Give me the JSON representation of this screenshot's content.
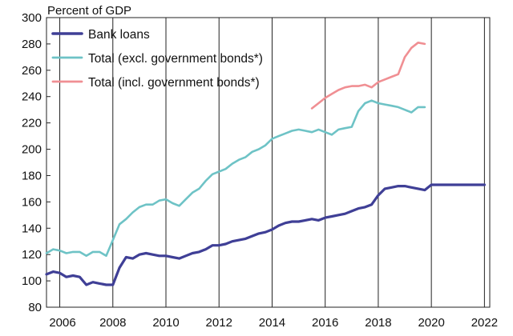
{
  "chart_data": {
    "type": "line",
    "title": "",
    "ylabel": "Percent of GDP",
    "xlabel": "",
    "xlim": [
      2005.5,
      2022.2
    ],
    "ylim": [
      80,
      300
    ],
    "y_ticks": [
      80,
      100,
      120,
      140,
      160,
      180,
      200,
      220,
      240,
      260,
      280,
      300
    ],
    "x_ticks": [
      2006,
      2008,
      2010,
      2012,
      2014,
      2016,
      2018,
      2020,
      2022
    ],
    "grid": {
      "vertical_lines_at_years": true,
      "horizontal": false
    },
    "legend_position": "top-left",
    "series": [
      {
        "name": "Bank loans",
        "color": "#3f3f96",
        "x": [
          2005.5,
          2005.75,
          2006.0,
          2006.25,
          2006.5,
          2006.75,
          2007.0,
          2007.25,
          2007.5,
          2007.75,
          2008.0,
          2008.25,
          2008.5,
          2008.75,
          2009.0,
          2009.25,
          2009.5,
          2009.75,
          2010.0,
          2010.25,
          2010.5,
          2010.75,
          2011.0,
          2011.25,
          2011.5,
          2011.75,
          2012.0,
          2012.25,
          2012.5,
          2012.75,
          2013.0,
          2013.25,
          2013.5,
          2013.75,
          2014.0,
          2014.25,
          2014.5,
          2014.75,
          2015.0,
          2015.25,
          2015.5,
          2015.75,
          2016.0,
          2016.25,
          2016.5,
          2016.75,
          2017.0,
          2017.25,
          2017.5,
          2017.75,
          2018.0,
          2018.25,
          2018.5,
          2018.75,
          2019.0,
          2019.25,
          2019.5,
          2019.75,
          2020.0,
          2020.25,
          2020.5,
          2020.75,
          2021.0,
          2021.25,
          2021.5,
          2021.75,
          2022.0
        ],
        "values": [
          105,
          107,
          106,
          103,
          104,
          103,
          97,
          99,
          98,
          97,
          97,
          110,
          118,
          117,
          120,
          121,
          120,
          119,
          119,
          118,
          117,
          119,
          121,
          122,
          124,
          127,
          127,
          128,
          130,
          131,
          132,
          134,
          136,
          137,
          139,
          142,
          144,
          145,
          145,
          146,
          147,
          146,
          148,
          149,
          150,
          151,
          153,
          155,
          156,
          158,
          165,
          170,
          171,
          172,
          172,
          171,
          170,
          169,
          173,
          173,
          173,
          173,
          173,
          173,
          173,
          173,
          173
        ]
      },
      {
        "name": "Total (excl. government bonds*)",
        "color": "#6ec3c6",
        "x": [
          2005.5,
          2005.75,
          2006.0,
          2006.25,
          2006.5,
          2006.75,
          2007.0,
          2007.25,
          2007.5,
          2007.75,
          2008.0,
          2008.25,
          2008.5,
          2008.75,
          2009.0,
          2009.25,
          2009.5,
          2009.75,
          2010.0,
          2010.25,
          2010.5,
          2010.75,
          2011.0,
          2011.25,
          2011.5,
          2011.75,
          2012.0,
          2012.25,
          2012.5,
          2012.75,
          2013.0,
          2013.25,
          2013.5,
          2013.75,
          2014.0,
          2014.25,
          2014.5,
          2014.75,
          2015.0,
          2015.25,
          2015.5,
          2015.75,
          2016.0,
          2016.25,
          2016.5,
          2016.75,
          2017.0,
          2017.25,
          2017.5,
          2017.75,
          2018.0,
          2018.25,
          2018.5,
          2018.75,
          2019.0,
          2019.25,
          2019.5,
          2019.75
        ],
        "values": [
          121,
          124,
          123,
          121,
          122,
          122,
          119,
          122,
          122,
          119,
          131,
          143,
          147,
          152,
          156,
          158,
          158,
          161,
          162,
          159,
          157,
          162,
          167,
          170,
          176,
          181,
          183,
          185,
          189,
          192,
          194,
          198,
          200,
          203,
          208,
          210,
          212,
          214,
          215,
          214,
          213,
          215,
          213,
          211,
          215,
          216,
          217,
          229,
          235,
          237,
          235,
          234,
          233,
          232,
          230,
          228,
          232,
          232
        ]
      },
      {
        "name": "Total (incl. government bonds*)",
        "color": "#f08f93",
        "x": [
          2015.5,
          2015.75,
          2016.0,
          2016.25,
          2016.5,
          2016.75,
          2017.0,
          2017.25,
          2017.5,
          2017.75,
          2018.0,
          2018.25,
          2018.5,
          2018.75,
          2019.0,
          2019.25,
          2019.5,
          2019.75
        ],
        "values": [
          231,
          235,
          239,
          242,
          245,
          247,
          248,
          248,
          249,
          247,
          251,
          253,
          255,
          257,
          270,
          277,
          281,
          280
        ]
      }
    ]
  }
}
